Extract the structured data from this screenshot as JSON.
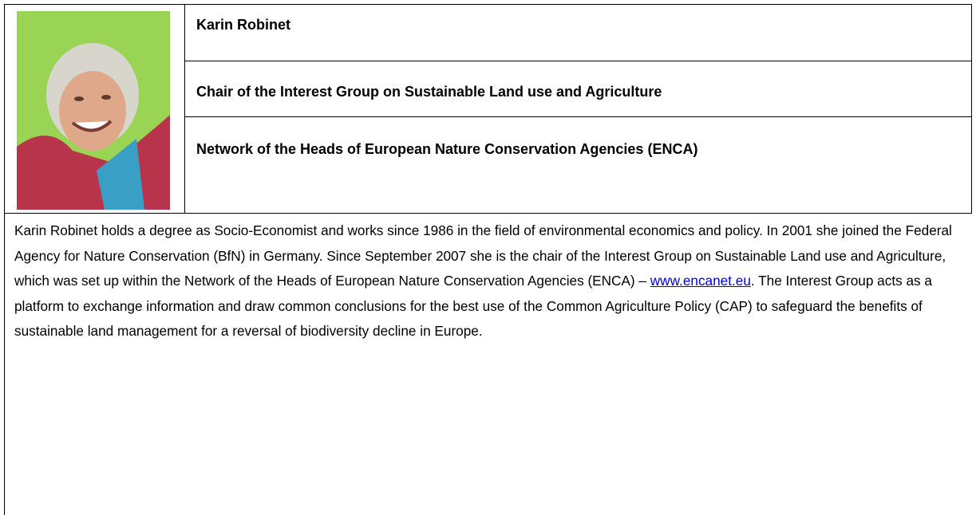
{
  "profile": {
    "name": "Karin Robinet",
    "role": "Chair of the Interest Group on Sustainable Land use and Agriculture",
    "organization": "Network of the Heads of European Nature Conservation Agencies (ENCA)",
    "bio": {
      "before": "Karin Robinet holds a degree as Socio-Economist and works since 1986 in the field of environmental economics and policy. In 2001 she joined the Federal Agency for Nature Conservation (BfN) in Germany. Since September 2007 she is the chair of the Interest Group on Sustainable Land use and Agriculture, which was set up within the Network of the Heads of European Nature Conservation Agencies (ENCA) – ",
      "link": "www.encanet.eu",
      "after": ". The Interest Group acts as a platform to exchange information and draw common conclusions for the best use of the Common Agriculture Policy (CAP) to safeguard the benefits of sustainable land management for a reversal of biodiversity decline in Europe."
    }
  }
}
